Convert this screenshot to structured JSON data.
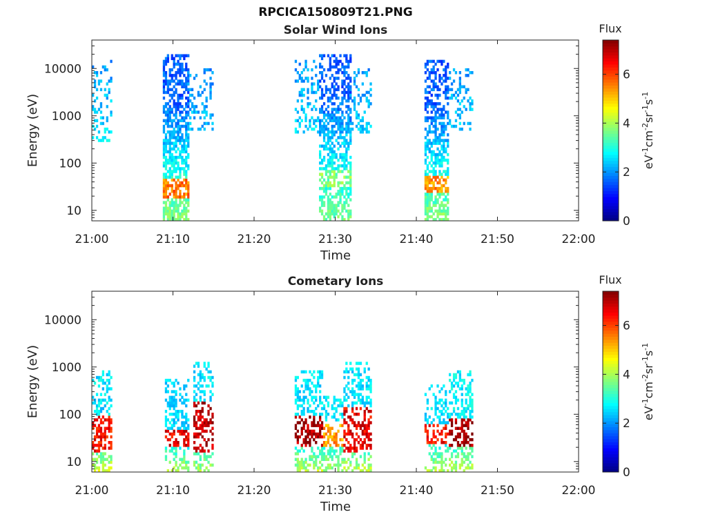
{
  "figure": {
    "title": "RPCICA150809T21.PNG"
  },
  "colorbar": {
    "label": "Flux",
    "unit_text": "eV-1cm-2sr-1s-1",
    "range": [
      0,
      7.4
    ],
    "ticks": [
      "0",
      "2",
      "4",
      "6"
    ],
    "colormap": "jet"
  },
  "chart_data": [
    {
      "type": "heatmap",
      "title": "Solar Wind Ions",
      "xlabel": "Time",
      "ylabel": "Energy (eV)",
      "yscale": "log",
      "ylim": [
        6,
        40000
      ],
      "xlim": [
        "21:00",
        "22:00"
      ],
      "x_ticks": [
        "21:00",
        "21:10",
        "21:20",
        "21:30",
        "21:40",
        "21:50",
        "22:00"
      ],
      "y_ticks": [
        "10",
        "100",
        "1000",
        "10000"
      ],
      "blobs": [
        {
          "t_start": "21:00",
          "t_end": "21:02.3",
          "e_low": 300,
          "e_high": 15000,
          "density": 0.35,
          "flux": 1.9,
          "flux_low": 2.6,
          "gradient": 0.8,
          "cores": []
        },
        {
          "t_start": "21:08.8",
          "t_end": "21:11.8",
          "e_low": 6,
          "e_high": 20000,
          "density": 0.75,
          "flux": 1.6,
          "flux_low": 3.8,
          "gradient": 1.4,
          "cores": [
            {
              "e_low": 18,
              "e_high": 45,
              "flux": 5.6
            }
          ]
        },
        {
          "t_start": "21:11.8",
          "t_end": "21:15",
          "e_low": 500,
          "e_high": 10000,
          "density": 0.3,
          "flux": 1.7,
          "flux_low": 2.3,
          "gradient": 0.6,
          "cores": []
        },
        {
          "t_start": "21:25",
          "t_end": "21:28",
          "e_low": 400,
          "e_high": 15000,
          "density": 0.35,
          "flux": 1.8,
          "flux_low": 2.5,
          "gradient": 0.7,
          "cores": []
        },
        {
          "t_start": "21:28",
          "t_end": "21:31.8",
          "e_low": 6,
          "e_high": 20000,
          "density": 0.65,
          "flux": 1.6,
          "flux_low": 3.6,
          "gradient": 1.3,
          "cores": [
            {
              "e_low": 30,
              "e_high": 70,
              "flux": 3.7
            }
          ]
        },
        {
          "t_start": "21:31.8",
          "t_end": "21:34.5",
          "e_low": 400,
          "e_high": 10000,
          "density": 0.3,
          "flux": 1.8,
          "flux_low": 2.4,
          "gradient": 0.6,
          "cores": []
        },
        {
          "t_start": "21:41",
          "t_end": "21:44",
          "e_low": 6,
          "e_high": 15000,
          "density": 0.7,
          "flux": 1.6,
          "flux_low": 3.8,
          "gradient": 1.4,
          "cores": [
            {
              "e_low": 25,
              "e_high": 55,
              "flux": 5.4
            }
          ]
        },
        {
          "t_start": "21:44",
          "t_end": "21:47",
          "e_low": 500,
          "e_high": 10000,
          "density": 0.3,
          "flux": 1.8,
          "flux_low": 2.4,
          "gradient": 0.6,
          "cores": []
        }
      ]
    },
    {
      "type": "heatmap",
      "title": "Cometary Ions",
      "xlabel": "Time",
      "ylabel": "Energy (eV)",
      "yscale": "log",
      "ylim": [
        6,
        40000
      ],
      "xlim": [
        "21:00",
        "22:00"
      ],
      "x_ticks": [
        "21:00",
        "21:10",
        "21:20",
        "21:30",
        "21:40",
        "21:50",
        "22:00"
      ],
      "y_ticks": [
        "10",
        "100",
        "1000",
        "10000"
      ],
      "blobs": [
        {
          "t_start": "21:00",
          "t_end": "21:02.3",
          "e_low": 6,
          "e_high": 900,
          "density": 0.55,
          "flux": 2.6,
          "flux_low": 4.4,
          "gradient": 2.8,
          "cores": [
            {
              "e_low": 15,
              "e_high": 90,
              "flux": 6.4
            }
          ]
        },
        {
          "t_start": "21:09",
          "t_end": "21:12",
          "e_low": 6,
          "e_high": 600,
          "density": 0.5,
          "flux": 2.5,
          "flux_low": 4.0,
          "gradient": 2.6,
          "cores": [
            {
              "e_low": 20,
              "e_high": 45,
              "flux": 6.6
            }
          ]
        },
        {
          "t_start": "21:12.5",
          "t_end": "21:15",
          "e_low": 6,
          "e_high": 1300,
          "density": 0.55,
          "flux": 2.6,
          "flux_low": 4.0,
          "gradient": 2.8,
          "cores": [
            {
              "e_low": 15,
              "e_high": 200,
              "flux": 6.9
            }
          ]
        },
        {
          "t_start": "21:25",
          "t_end": "21:28.5",
          "e_low": 6,
          "e_high": 900,
          "density": 0.55,
          "flux": 2.6,
          "flux_low": 4.2,
          "gradient": 2.8,
          "cores": [
            {
              "e_low": 20,
              "e_high": 90,
              "flux": 7.1
            }
          ]
        },
        {
          "t_start": "21:28.5",
          "t_end": "21:31",
          "e_low": 6,
          "e_high": 250,
          "density": 0.5,
          "flux": 2.7,
          "flux_low": 4.0,
          "gradient": 2.2,
          "cores": [
            {
              "e_low": 20,
              "e_high": 60,
              "flux": 5.4
            }
          ]
        },
        {
          "t_start": "21:31",
          "t_end": "21:34.5",
          "e_low": 6,
          "e_high": 1300,
          "density": 0.55,
          "flux": 2.6,
          "flux_low": 4.2,
          "gradient": 2.8,
          "cores": [
            {
              "e_low": 15,
              "e_high": 150,
              "flux": 6.6
            }
          ]
        },
        {
          "t_start": "21:41",
          "t_end": "21:44",
          "e_low": 6,
          "e_high": 400,
          "density": 0.45,
          "flux": 2.6,
          "flux_low": 4.0,
          "gradient": 2.4,
          "cores": [
            {
              "e_low": 25,
              "e_high": 60,
              "flux": 6.4
            }
          ]
        },
        {
          "t_start": "21:44",
          "t_end": "21:47",
          "e_low": 6,
          "e_high": 900,
          "density": 0.55,
          "flux": 2.7,
          "flux_low": 4.2,
          "gradient": 2.8,
          "cores": [
            {
              "e_low": 20,
              "e_high": 80,
              "flux": 7.2
            }
          ]
        }
      ]
    }
  ]
}
